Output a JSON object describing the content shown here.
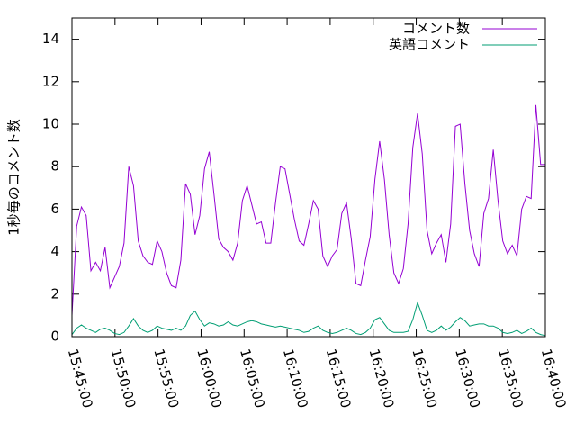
{
  "chart_data": {
    "type": "line",
    "y_label": "1秒毎のコメント数",
    "x": [
      "15:45:00",
      "15:45:33",
      "15:46:06",
      "15:46:39",
      "15:47:12",
      "15:47:45",
      "15:48:18",
      "15:48:51",
      "15:49:24",
      "15:49:57",
      "15:50:30",
      "15:51:03",
      "15:51:36",
      "15:52:09",
      "15:52:42",
      "15:53:15",
      "15:53:48",
      "15:54:21",
      "15:54:54",
      "15:55:27",
      "15:56:00",
      "15:56:33",
      "15:57:06",
      "15:57:39",
      "15:58:12",
      "15:58:45",
      "15:59:18",
      "15:59:51",
      "16:00:24",
      "16:00:57",
      "16:01:30",
      "16:02:03",
      "16:02:36",
      "16:03:09",
      "16:03:42",
      "16:04:15",
      "16:04:48",
      "16:05:21",
      "16:05:54",
      "16:06:27",
      "16:07:00",
      "16:07:33",
      "16:08:06",
      "16:08:39",
      "16:09:12",
      "16:09:45",
      "16:10:18",
      "16:10:51",
      "16:11:24",
      "16:11:57",
      "16:12:30",
      "16:13:03",
      "16:13:36",
      "16:14:09",
      "16:14:42",
      "16:15:15",
      "16:15:48",
      "16:16:21",
      "16:16:54",
      "16:17:27",
      "16:18:00",
      "16:18:33",
      "16:19:06",
      "16:19:39",
      "16:20:12",
      "16:20:45",
      "16:21:18",
      "16:21:51",
      "16:22:24",
      "16:22:57",
      "16:23:30",
      "16:24:03",
      "16:24:36",
      "16:25:09",
      "16:25:42",
      "16:26:15",
      "16:26:48",
      "16:27:21",
      "16:27:54",
      "16:28:27",
      "16:29:00",
      "16:29:33",
      "16:30:06",
      "16:30:39",
      "16:31:12",
      "16:31:45",
      "16:32:18",
      "16:32:51",
      "16:33:24",
      "16:33:57",
      "16:34:30",
      "16:35:03",
      "16:35:36",
      "16:36:09",
      "16:36:42",
      "16:37:15",
      "16:37:48",
      "16:38:21",
      "16:38:54",
      "16:39:27",
      "16:40:00"
    ],
    "series": [
      {
        "name": "コメント数",
        "color": "#9400d3",
        "values": [
          1.0,
          5.2,
          6.1,
          5.7,
          3.1,
          3.5,
          3.1,
          4.2,
          2.3,
          2.8,
          3.3,
          4.4,
          8.0,
          7.1,
          4.5,
          3.8,
          3.5,
          3.4,
          4.5,
          4.0,
          3.0,
          2.4,
          2.3,
          3.6,
          7.2,
          6.7,
          4.8,
          5.7,
          7.9,
          8.7,
          6.7,
          4.6,
          4.2,
          4.0,
          3.6,
          4.4,
          6.4,
          7.1,
          6.2,
          5.3,
          5.4,
          4.4,
          4.4,
          6.3,
          8.0,
          7.9,
          6.7,
          5.5,
          4.5,
          4.3,
          5.3,
          6.4,
          6.0,
          3.8,
          3.3,
          3.8,
          4.1,
          5.8,
          6.3,
          4.6,
          2.5,
          2.4,
          3.6,
          4.7,
          7.4,
          9.2,
          7.4,
          4.8,
          3.0,
          2.5,
          3.2,
          5.3,
          8.9,
          10.5,
          8.6,
          5.0,
          3.9,
          4.4,
          4.8,
          3.5,
          5.3,
          9.9,
          10.0,
          7.2,
          5.0,
          3.9,
          3.3,
          5.8,
          6.5,
          8.8,
          6.4,
          4.5,
          3.9,
          4.3,
          3.8,
          6.0,
          6.6,
          6.5,
          10.9,
          8.1,
          8.1
        ]
      },
      {
        "name": "英語コメント",
        "color": "#009e73",
        "values": [
          0.1,
          0.4,
          0.55,
          0.4,
          0.3,
          0.2,
          0.35,
          0.4,
          0.3,
          0.15,
          0.1,
          0.2,
          0.5,
          0.85,
          0.5,
          0.3,
          0.2,
          0.3,
          0.5,
          0.4,
          0.35,
          0.3,
          0.4,
          0.3,
          0.5,
          1.0,
          1.2,
          0.8,
          0.5,
          0.65,
          0.6,
          0.5,
          0.55,
          0.7,
          0.55,
          0.5,
          0.6,
          0.7,
          0.75,
          0.7,
          0.6,
          0.55,
          0.5,
          0.45,
          0.5,
          0.45,
          0.4,
          0.35,
          0.3,
          0.2,
          0.25,
          0.4,
          0.5,
          0.3,
          0.2,
          0.15,
          0.2,
          0.3,
          0.4,
          0.3,
          0.15,
          0.1,
          0.2,
          0.4,
          0.8,
          0.9,
          0.6,
          0.3,
          0.2,
          0.2,
          0.2,
          0.25,
          0.8,
          1.6,
          1.0,
          0.3,
          0.2,
          0.3,
          0.5,
          0.3,
          0.45,
          0.7,
          0.9,
          0.75,
          0.5,
          0.55,
          0.6,
          0.6,
          0.5,
          0.5,
          0.4,
          0.2,
          0.15,
          0.2,
          0.3,
          0.15,
          0.25,
          0.4,
          0.2,
          0.1,
          0.05
        ]
      }
    ],
    "xlim": [
      "15:45:00",
      "16:40:00"
    ],
    "xticks": [
      "15:45:00",
      "15:50:00",
      "15:55:00",
      "16:00:00",
      "16:05:00",
      "16:10:00",
      "16:15:00",
      "16:20:00",
      "16:25:00",
      "16:30:00",
      "16:35:00",
      "16:40:00"
    ],
    "ylim": [
      0,
      15
    ],
    "yticks": [
      0,
      2,
      4,
      6,
      8,
      10,
      12,
      14
    ],
    "legend": "top right",
    "grid": false
  }
}
